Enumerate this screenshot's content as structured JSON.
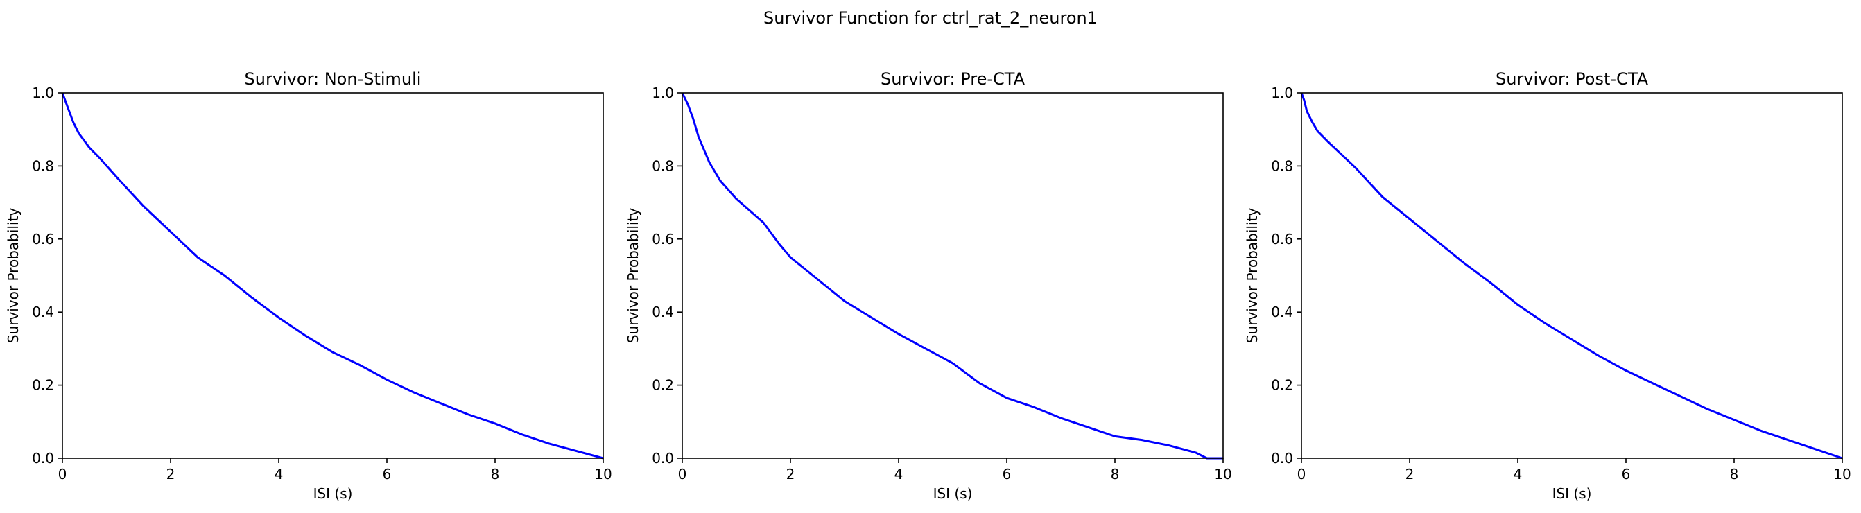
{
  "suptitle": "Survivor Function for ctrl_rat_2_neuron1",
  "chart_data": [
    {
      "type": "line",
      "title": "Survivor: Non-Stimuli",
      "xlabel": "ISI (s)",
      "ylabel": "Survivor Probability",
      "xlim": [
        0,
        10
      ],
      "ylim": [
        0,
        1
      ],
      "xticks": [
        "0",
        "2",
        "4",
        "6",
        "8",
        "10"
      ],
      "yticks": [
        "0.0",
        "0.2",
        "0.4",
        "0.6",
        "0.8",
        "1.0"
      ],
      "grid": false,
      "color": "#0000ff",
      "x": [
        0,
        0.1,
        0.2,
        0.3,
        0.5,
        0.7,
        1.0,
        1.5,
        2.0,
        2.5,
        3.0,
        3.5,
        4.0,
        4.5,
        5.0,
        5.5,
        6.0,
        6.5,
        7.0,
        7.5,
        8.0,
        8.5,
        9.0,
        9.5,
        10.0
      ],
      "y": [
        1.0,
        0.96,
        0.92,
        0.89,
        0.85,
        0.82,
        0.77,
        0.69,
        0.62,
        0.55,
        0.5,
        0.44,
        0.385,
        0.335,
        0.29,
        0.255,
        0.215,
        0.18,
        0.15,
        0.12,
        0.095,
        0.065,
        0.04,
        0.02,
        0.0
      ]
    },
    {
      "type": "line",
      "title": "Survivor: Pre-CTA",
      "xlabel": "ISI (s)",
      "ylabel": "Survivor Probability",
      "xlim": [
        0,
        10
      ],
      "ylim": [
        0,
        1
      ],
      "xticks": [
        "0",
        "2",
        "4",
        "6",
        "8",
        "10"
      ],
      "yticks": [
        "0.0",
        "0.2",
        "0.4",
        "0.6",
        "0.8",
        "1.0"
      ],
      "grid": false,
      "color": "#0000ff",
      "x": [
        0,
        0.1,
        0.2,
        0.3,
        0.5,
        0.7,
        1.0,
        1.5,
        1.8,
        2.0,
        2.5,
        3.0,
        3.5,
        4.0,
        4.5,
        5.0,
        5.5,
        6.0,
        6.5,
        7.0,
        7.5,
        8.0,
        8.5,
        9.0,
        9.5,
        9.7,
        10.0
      ],
      "y": [
        1.0,
        0.97,
        0.93,
        0.88,
        0.81,
        0.76,
        0.71,
        0.645,
        0.585,
        0.55,
        0.49,
        0.43,
        0.385,
        0.34,
        0.3,
        0.26,
        0.205,
        0.165,
        0.14,
        0.11,
        0.085,
        0.06,
        0.05,
        0.035,
        0.015,
        0.0,
        0.0
      ]
    },
    {
      "type": "line",
      "title": "Survivor: Post-CTA",
      "xlabel": "ISI (s)",
      "ylabel": "Survivor Probability",
      "xlim": [
        0,
        10
      ],
      "ylim": [
        0,
        1
      ],
      "xticks": [
        "0",
        "2",
        "4",
        "6",
        "8",
        "10"
      ],
      "yticks": [
        "0.0",
        "0.2",
        "0.4",
        "0.6",
        "0.8",
        "1.0"
      ],
      "grid": false,
      "color": "#0000ff",
      "x": [
        0,
        0.05,
        0.1,
        0.2,
        0.3,
        0.5,
        1.0,
        1.5,
        2.0,
        2.5,
        3.0,
        3.5,
        4.0,
        4.5,
        5.0,
        5.5,
        6.0,
        6.5,
        7.0,
        7.5,
        8.0,
        8.5,
        9.0,
        9.5,
        10.0
      ],
      "y": [
        1.0,
        0.98,
        0.95,
        0.92,
        0.895,
        0.865,
        0.795,
        0.715,
        0.655,
        0.595,
        0.535,
        0.48,
        0.42,
        0.37,
        0.325,
        0.28,
        0.24,
        0.205,
        0.17,
        0.135,
        0.105,
        0.075,
        0.05,
        0.025,
        0.0
      ]
    }
  ]
}
